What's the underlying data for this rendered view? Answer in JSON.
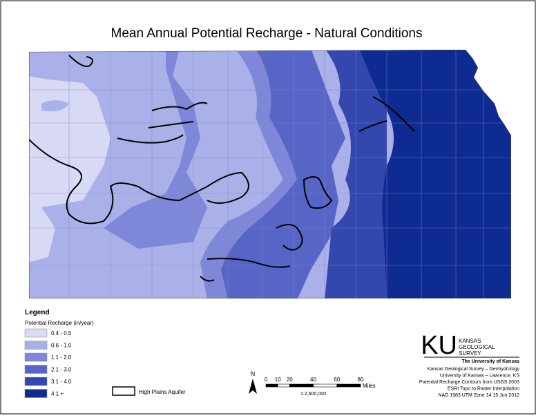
{
  "title": "Mean Annual Potential Recharge - Natural Conditions",
  "legend": {
    "title": "Legend",
    "subtitle": "Potential Recharge (in/year)",
    "items": [
      {
        "label": "0.4 - 0.5",
        "color": "#d7d9f5"
      },
      {
        "label": "0.6 - 1.0",
        "color": "#aab0e8"
      },
      {
        "label": "1.1 - 2.0",
        "color": "#7f88d8"
      },
      {
        "label": "2.1 - 3.0",
        "color": "#5765c6"
      },
      {
        "label": "3.1 - 4.0",
        "color": "#3347ae"
      },
      {
        "label": "4.1 +",
        "color": "#0d2b90"
      }
    ],
    "aquifer": "High Plains Aquifer"
  },
  "north": "N",
  "scale": {
    "ticks": [
      0,
      10,
      20,
      40,
      60,
      80
    ],
    "unit": "Miles",
    "ratio": "1:2,600,000"
  },
  "logo": {
    "mark": "KU",
    "name": [
      "KANSAS",
      "GEOLOGICAL",
      "SURVEY"
    ],
    "university": "The University of Kansas"
  },
  "credits": [
    "Kansas Geological Survey – Geohydrology",
    "University of Kansas – Lawrence, KS",
    "Potential Recharge Contours from USGS 2003",
    "ESRI Topo to Raster Interpolation",
    "NAD 1983 UTM Zone 14 15 Jun 2012"
  ]
}
